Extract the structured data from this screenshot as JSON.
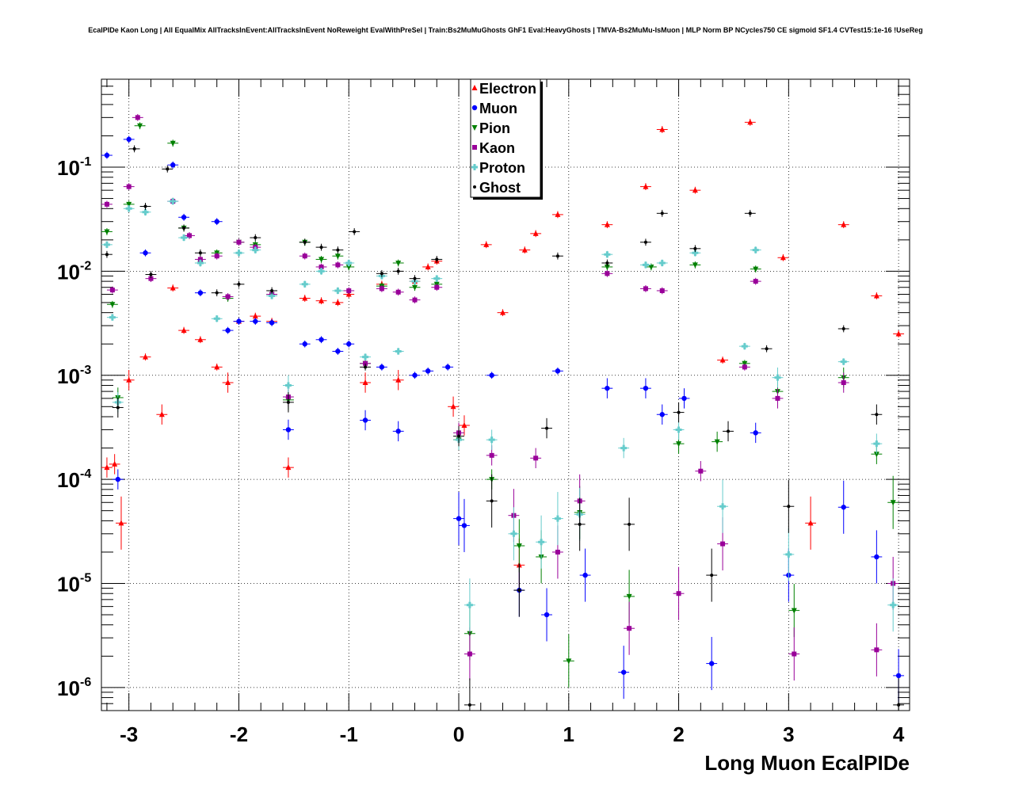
{
  "chart_data": {
    "type": "scatter",
    "title": "EcalPIDe Kaon Long | All EqualMix AllTracksInEvent:AllTracksInEvent NoReweight EvalWithPreSel | Train:Bs2MuMuGhosts GhF1 Eval:HeavyGhosts | TMVA-Bs2MuMu-IsMuon | MLP Norm BP NCycles750 CE sigmoid SF1.4 CVTest15:1e-16 !UseReg",
    "xlabel": "Long Muon EcalPIDe",
    "ylabel": "",
    "xlim": [
      -3.25,
      4.1
    ],
    "ylim": [
      6e-07,
      0.7
    ],
    "y_scale": "log",
    "grid": true,
    "legend_position": "top-center",
    "x_ticks": [
      {
        "value": -3,
        "label": "-3"
      },
      {
        "value": -2,
        "label": "-2"
      },
      {
        "value": -1,
        "label": "-1"
      },
      {
        "value": 0,
        "label": "0"
      },
      {
        "value": 1,
        "label": "1"
      },
      {
        "value": 2,
        "label": "2"
      },
      {
        "value": 3,
        "label": "3"
      },
      {
        "value": 4,
        "label": "4"
      }
    ],
    "y_ticks": [
      {
        "value": 1e-06,
        "base": "10",
        "exp": "-6"
      },
      {
        "value": 1e-05,
        "base": "10",
        "exp": "-5"
      },
      {
        "value": 0.0001,
        "base": "10",
        "exp": "-4"
      },
      {
        "value": 0.001,
        "base": "10",
        "exp": "-3"
      },
      {
        "value": 0.01,
        "base": "10",
        "exp": "-2"
      },
      {
        "value": 0.1,
        "base": "10",
        "exp": "-1"
      }
    ],
    "series": [
      {
        "name": "Electron",
        "color": "#ff0000",
        "marker": "triangle-up",
        "points": [
          [
            -3.2,
            0.00013
          ],
          [
            -3.13,
            0.00014
          ],
          [
            -3.07,
            3.8e-05
          ],
          [
            -3.0,
            0.0009
          ],
          [
            -2.85,
            0.0015
          ],
          [
            -2.7,
            0.00042
          ],
          [
            -2.6,
            0.0069
          ],
          [
            -2.5,
            0.0027
          ],
          [
            -2.35,
            0.0022
          ],
          [
            -2.2,
            0.0012
          ],
          [
            -2.1,
            0.00085
          ],
          [
            -2.0,
            0.0033
          ],
          [
            -1.85,
            0.0037
          ],
          [
            -1.7,
            0.0033
          ],
          [
            -1.55,
            0.00013
          ],
          [
            -1.4,
            0.0055
          ],
          [
            -1.25,
            0.0052
          ],
          [
            -1.1,
            0.005
          ],
          [
            -1.0,
            0.006
          ],
          [
            -0.85,
            0.00085
          ],
          [
            -0.7,
            0.0075
          ],
          [
            -0.55,
            0.0009
          ],
          [
            -0.4,
            0.008
          ],
          [
            -0.28,
            0.011
          ],
          [
            -0.2,
            0.0125
          ],
          [
            -0.05,
            0.0005
          ],
          [
            0.05,
            0.00033
          ],
          [
            0.25,
            0.018
          ],
          [
            0.4,
            0.004
          ],
          [
            0.55,
            1.5e-05
          ],
          [
            0.6,
            0.016
          ],
          [
            0.7,
            0.023
          ],
          [
            0.9,
            0.035
          ],
          [
            1.35,
            0.028
          ],
          [
            1.7,
            0.065
          ],
          [
            1.85,
            0.23
          ],
          [
            2.15,
            0.06
          ],
          [
            2.4,
            0.0014
          ],
          [
            2.65,
            0.27
          ],
          [
            2.95,
            0.0135
          ],
          [
            3.2,
            3.8e-05
          ],
          [
            3.5,
            0.028
          ],
          [
            3.8,
            0.0058
          ],
          [
            4.0,
            0.0025
          ]
        ]
      },
      {
        "name": "Muon",
        "color": "#0000ff",
        "marker": "circle",
        "points": [
          [
            -3.2,
            0.13
          ],
          [
            -3.1,
            0.0001
          ],
          [
            -3.0,
            0.185
          ],
          [
            -2.85,
            0.015
          ],
          [
            -2.6,
            0.105
          ],
          [
            -2.5,
            0.033
          ],
          [
            -2.35,
            0.0062
          ],
          [
            -2.2,
            0.03
          ],
          [
            -2.1,
            0.0027
          ],
          [
            -2.0,
            0.0033
          ],
          [
            -1.85,
            0.0033
          ],
          [
            -1.7,
            0.0032
          ],
          [
            -1.55,
            0.0003
          ],
          [
            -1.4,
            0.002
          ],
          [
            -1.25,
            0.0022
          ],
          [
            -1.1,
            0.0017
          ],
          [
            -1.0,
            0.002
          ],
          [
            -0.85,
            0.00037
          ],
          [
            -0.7,
            0.0012
          ],
          [
            -0.55,
            0.00029
          ],
          [
            -0.4,
            0.001
          ],
          [
            -0.28,
            0.0011
          ],
          [
            -0.1,
            0.0012
          ],
          [
            0.0,
            4.2e-05
          ],
          [
            0.05,
            3.6e-05
          ],
          [
            0.3,
            0.001
          ],
          [
            0.55,
            8.6e-06
          ],
          [
            0.8,
            5e-06
          ],
          [
            0.9,
            0.0011
          ],
          [
            1.15,
            1.2e-05
          ],
          [
            1.35,
            0.00075
          ],
          [
            1.5,
            1.4e-06
          ],
          [
            1.7,
            0.00075
          ],
          [
            1.85,
            0.00042
          ],
          [
            2.05,
            0.0006
          ],
          [
            2.3,
            1.7e-06
          ],
          [
            2.7,
            0.00028
          ],
          [
            3.0,
            1.2e-05
          ],
          [
            3.5,
            5.4e-05
          ],
          [
            3.8,
            1.8e-05
          ],
          [
            4.0,
            1.3e-06
          ]
        ]
      },
      {
        "name": "Pion",
        "color": "#008000",
        "marker": "triangle-down",
        "points": [
          [
            -3.2,
            0.024
          ],
          [
            -3.15,
            0.0048
          ],
          [
            -3.1,
            0.00061
          ],
          [
            -3.0,
            0.044
          ],
          [
            -2.9,
            0.25
          ],
          [
            -2.6,
            0.17
          ],
          [
            -2.5,
            0.026
          ],
          [
            -2.35,
            0.012
          ],
          [
            -2.2,
            0.015
          ],
          [
            -2.1,
            0.0055
          ],
          [
            -2.0,
            0.019
          ],
          [
            -1.85,
            0.018
          ],
          [
            -1.7,
            0.006
          ],
          [
            -1.55,
            0.00058
          ],
          [
            -1.4,
            0.019
          ],
          [
            -1.25,
            0.013
          ],
          [
            -1.1,
            0.014
          ],
          [
            -1.0,
            0.011
          ],
          [
            -0.85,
            0.0013
          ],
          [
            -0.7,
            0.0072
          ],
          [
            -0.55,
            0.012
          ],
          [
            -0.4,
            0.007
          ],
          [
            -0.2,
            0.0075
          ],
          [
            0.0,
            0.00024
          ],
          [
            0.1,
            3.3e-06
          ],
          [
            0.3,
            0.0001
          ],
          [
            0.55,
            2.3e-05
          ],
          [
            0.75,
            1.8e-05
          ],
          [
            1.0,
            1.8e-06
          ],
          [
            1.1,
            4.8e-05
          ],
          [
            1.35,
            0.011
          ],
          [
            1.55,
            7.5e-06
          ],
          [
            1.75,
            0.011
          ],
          [
            2.0,
            0.00022
          ],
          [
            2.15,
            0.0115
          ],
          [
            2.35,
            0.00023
          ],
          [
            2.6,
            0.0013
          ],
          [
            2.7,
            0.0105
          ],
          [
            2.9,
            0.0007
          ],
          [
            3.05,
            5.5e-06
          ],
          [
            3.5,
            0.00095
          ],
          [
            3.8,
            0.000175
          ],
          [
            3.95,
            6e-05
          ]
        ]
      },
      {
        "name": "Kaon",
        "color": "#990099",
        "marker": "square",
        "points": [
          [
            -3.2,
            0.044
          ],
          [
            -3.15,
            0.0066
          ],
          [
            -3.0,
            0.065
          ],
          [
            -2.92,
            0.3
          ],
          [
            -2.8,
            0.0085
          ],
          [
            -2.6,
            0.047
          ],
          [
            -2.45,
            0.022
          ],
          [
            -2.35,
            0.013
          ],
          [
            -2.2,
            0.014
          ],
          [
            -2.1,
            0.0057
          ],
          [
            -2.0,
            0.019
          ],
          [
            -1.85,
            0.017
          ],
          [
            -1.7,
            0.006
          ],
          [
            -1.55,
            0.00062
          ],
          [
            -1.4,
            0.014
          ],
          [
            -1.25,
            0.011
          ],
          [
            -1.1,
            0.0115
          ],
          [
            -1.0,
            0.0065
          ],
          [
            -0.85,
            0.0013
          ],
          [
            -0.7,
            0.0068
          ],
          [
            -0.55,
            0.0063
          ],
          [
            -0.4,
            0.0053
          ],
          [
            -0.2,
            0.007
          ],
          [
            0.0,
            0.00028
          ],
          [
            0.1,
            2.1e-06
          ],
          [
            0.3,
            0.00017
          ],
          [
            0.5,
            4.5e-05
          ],
          [
            0.7,
            0.00016
          ],
          [
            0.9,
            2e-05
          ],
          [
            1.1,
            6.2e-05
          ],
          [
            1.35,
            0.0095
          ],
          [
            1.55,
            3.7e-06
          ],
          [
            1.7,
            0.0068
          ],
          [
            1.85,
            0.0065
          ],
          [
            2.0,
            8e-06
          ],
          [
            2.2,
            0.00012
          ],
          [
            2.4,
            2.4e-05
          ],
          [
            2.6,
            0.0012
          ],
          [
            2.7,
            0.008
          ],
          [
            2.9,
            0.0006
          ],
          [
            3.05,
            2.1e-06
          ],
          [
            3.5,
            0.00085
          ],
          [
            3.8,
            2.3e-06
          ],
          [
            3.95,
            1e-05
          ]
        ]
      },
      {
        "name": "Proton",
        "color": "#66cccc",
        "marker": "cross",
        "points": [
          [
            -3.2,
            0.018
          ],
          [
            -3.15,
            0.0036
          ],
          [
            -3.1,
            0.00055
          ],
          [
            -3.0,
            0.04
          ],
          [
            -2.85,
            0.037
          ],
          [
            -2.6,
            0.047
          ],
          [
            -2.5,
            0.021
          ],
          [
            -2.35,
            0.012
          ],
          [
            -2.2,
            0.0035
          ],
          [
            -2.0,
            0.015
          ],
          [
            -1.85,
            0.016
          ],
          [
            -1.7,
            0.0058
          ],
          [
            -1.55,
            0.0008
          ],
          [
            -1.4,
            0.0075
          ],
          [
            -1.25,
            0.01
          ],
          [
            -1.1,
            0.0065
          ],
          [
            -1.0,
            0.012
          ],
          [
            -0.85,
            0.0015
          ],
          [
            -0.7,
            0.009
          ],
          [
            -0.55,
            0.0017
          ],
          [
            -0.4,
            0.008
          ],
          [
            -0.2,
            0.0085
          ],
          [
            0.0,
            0.00024
          ],
          [
            0.1,
            6.2e-06
          ],
          [
            0.3,
            0.00024
          ],
          [
            0.5,
            3e-05
          ],
          [
            0.75,
            2.5e-05
          ],
          [
            0.9,
            4.2e-05
          ],
          [
            1.1,
            4.6e-05
          ],
          [
            1.35,
            0.0145
          ],
          [
            1.5,
            0.0002
          ],
          [
            1.7,
            0.0115
          ],
          [
            1.85,
            0.012
          ],
          [
            2.0,
            0.0003
          ],
          [
            2.15,
            0.015
          ],
          [
            2.4,
            5.5e-05
          ],
          [
            2.6,
            0.0019
          ],
          [
            2.7,
            0.016
          ],
          [
            2.9,
            0.00095
          ],
          [
            3.0,
            1.9e-05
          ],
          [
            3.5,
            0.00135
          ],
          [
            3.8,
            0.00022
          ],
          [
            3.95,
            6.2e-06
          ]
        ]
      },
      {
        "name": "Ghost",
        "color": "#000000",
        "marker": "dot",
        "points": [
          [
            -3.2,
            0.0145
          ],
          [
            -3.1,
            0.00049
          ],
          [
            -2.95,
            0.15
          ],
          [
            -2.85,
            0.042
          ],
          [
            -2.8,
            0.0093
          ],
          [
            -2.65,
            0.096
          ],
          [
            -2.5,
            0.026
          ],
          [
            -2.35,
            0.015
          ],
          [
            -2.2,
            0.0062
          ],
          [
            -2.0,
            0.0075
          ],
          [
            -1.85,
            0.021
          ],
          [
            -1.7,
            0.0065
          ],
          [
            -1.55,
            0.00055
          ],
          [
            -1.4,
            0.019
          ],
          [
            -1.25,
            0.017
          ],
          [
            -1.1,
            0.016
          ],
          [
            -0.95,
            0.024
          ],
          [
            -0.85,
            0.0012
          ],
          [
            -0.7,
            0.0095
          ],
          [
            -0.55,
            0.01
          ],
          [
            -0.4,
            0.0085
          ],
          [
            -0.2,
            0.013
          ],
          [
            0.0,
            0.00026
          ],
          [
            0.1,
            6.8e-07
          ],
          [
            0.3,
            6.2e-05
          ],
          [
            0.55,
            8.6e-06
          ],
          [
            0.8,
            0.00031
          ],
          [
            0.9,
            0.014
          ],
          [
            1.1,
            3.7e-05
          ],
          [
            1.35,
            0.012
          ],
          [
            1.55,
            3.7e-05
          ],
          [
            1.7,
            0.019
          ],
          [
            1.85,
            0.036
          ],
          [
            2.0,
            0.00044
          ],
          [
            2.15,
            0.0165
          ],
          [
            2.3,
            1.2e-05
          ],
          [
            2.45,
            0.00029
          ],
          [
            2.65,
            0.036
          ],
          [
            2.8,
            0.0018
          ],
          [
            3.0,
            5.5e-05
          ],
          [
            3.5,
            0.0028
          ],
          [
            3.8,
            0.00042
          ],
          [
            4.0,
            6.8e-07
          ]
        ]
      }
    ]
  }
}
